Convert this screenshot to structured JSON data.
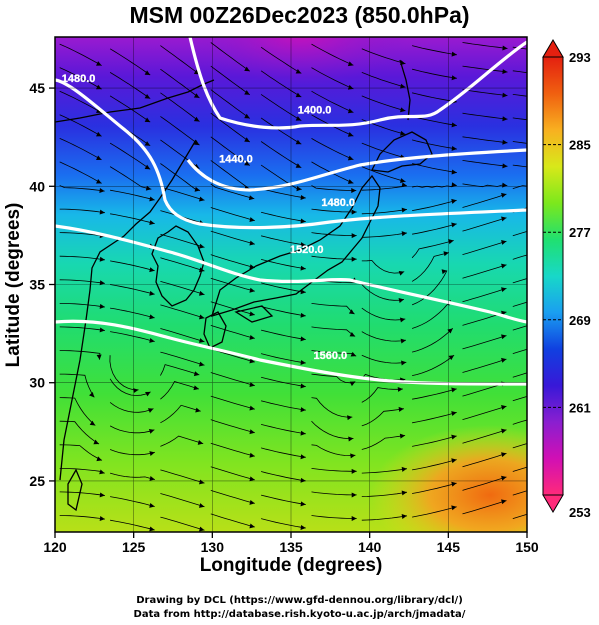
{
  "title": "MSM 00Z26Dec2023 (850.0hPa)",
  "x_axis": {
    "label": "Longitude (degrees)",
    "ticks": [
      "120",
      "125",
      "130",
      "135",
      "140",
      "145",
      "150"
    ],
    "range": [
      120,
      150
    ]
  },
  "y_axis": {
    "label": "Latitude  (degrees)",
    "ticks": [
      "25",
      "30",
      "35",
      "40",
      "45"
    ],
    "range": [
      22.4,
      47.6
    ]
  },
  "colorbar": {
    "ticks": [
      "293",
      "285",
      "277",
      "269",
      "261",
      "253"
    ],
    "range": [
      253,
      293
    ],
    "colors": [
      "#ff2a7a",
      "#d10fb4",
      "#8a1fd0",
      "#3818d8",
      "#1040e0",
      "#1a9ff0",
      "#18d8c8",
      "#20e070",
      "#7ce81c",
      "#d8e81a",
      "#f8b020",
      "#f06010",
      "#e42010"
    ]
  },
  "contours": [
    {
      "label": "1400.0",
      "label_pos": [
        136.5,
        43.7
      ]
    },
    {
      "label": "1440.0",
      "label_pos": [
        131.5,
        41.2
      ]
    },
    {
      "label": "1480.0",
      "label_pos": [
        121.5,
        45.3
      ]
    },
    {
      "label": "1480.0",
      "label_pos": [
        138.0,
        39.0
      ]
    },
    {
      "label": "1520.0",
      "label_pos": [
        136.0,
        36.6
      ]
    },
    {
      "label": "1560.0",
      "label_pos": [
        137.5,
        31.2
      ]
    }
  ],
  "credits": {
    "line1": "Drawing by DCL (https://www.gfd-dennou.org/library/dcl/)",
    "line2": "Data from http://database.rish.kyoto-u.ac.jp/arch/jmadata/"
  }
}
